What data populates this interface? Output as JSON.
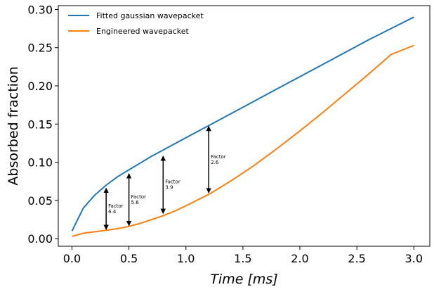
{
  "chart_data": {
    "type": "line",
    "xlabel": "Time [ms]",
    "ylabel": "Absorbed fraction",
    "xlim": [
      -0.12,
      3.14
    ],
    "ylim": [
      -0.01,
      0.305
    ],
    "xticks": [
      "0.0",
      "0.5",
      "1.0",
      "1.5",
      "2.0",
      "2.5",
      "3.0"
    ],
    "xtick_values": [
      0,
      0.5,
      1.0,
      1.5,
      2.0,
      2.5,
      3.0
    ],
    "yticks": [
      "0.00",
      "0.05",
      "0.10",
      "0.15",
      "0.20",
      "0.25",
      "0.30"
    ],
    "ytick_values": [
      0,
      0.05,
      0.1,
      0.15,
      0.2,
      0.25,
      0.3
    ],
    "grid": false,
    "legend_position": "top-left",
    "series": [
      {
        "name": "Fitted gaussian wavepacket",
        "color": "#1f77b4",
        "x": [
          0,
          0.1,
          0.2,
          0.3,
          0.4,
          0.5,
          0.6,
          0.7,
          0.8,
          0.9,
          1.0,
          1.2,
          1.4,
          1.6,
          1.8,
          2.0,
          2.2,
          2.4,
          2.6,
          2.8,
          3.0
        ],
        "values": [
          0.01,
          0.04,
          0.057,
          0.07,
          0.081,
          0.09,
          0.099,
          0.108,
          0.116,
          0.124,
          0.132,
          0.148,
          0.164,
          0.18,
          0.196,
          0.212,
          0.228,
          0.244,
          0.26,
          0.275,
          0.29
        ]
      },
      {
        "name": "Engineered wavepacket",
        "color": "#ff7f0e",
        "x": [
          0,
          0.1,
          0.2,
          0.3,
          0.4,
          0.5,
          0.6,
          0.7,
          0.8,
          0.9,
          1.0,
          1.2,
          1.4,
          1.6,
          1.8,
          2.0,
          2.2,
          2.4,
          2.6,
          2.8,
          3.0
        ],
        "values": [
          0.003,
          0.007,
          0.009,
          0.011,
          0.013,
          0.016,
          0.02,
          0.025,
          0.03,
          0.036,
          0.043,
          0.058,
          0.076,
          0.096,
          0.118,
          0.141,
          0.165,
          0.19,
          0.215,
          0.241,
          0.253
        ]
      }
    ],
    "annotations": [
      {
        "x": 0.3,
        "y_top": 0.066,
        "y_bottom": 0.012,
        "label": "Factor\n6.4"
      },
      {
        "x": 0.5,
        "y_top": 0.085,
        "y_bottom": 0.017,
        "label": "Factor\n5.6"
      },
      {
        "x": 0.8,
        "y_top": 0.108,
        "y_bottom": 0.033,
        "label": "Factor\n3.9"
      },
      {
        "x": 1.2,
        "y_top": 0.147,
        "y_bottom": 0.06,
        "label": "Factor\n2.6"
      }
    ]
  }
}
